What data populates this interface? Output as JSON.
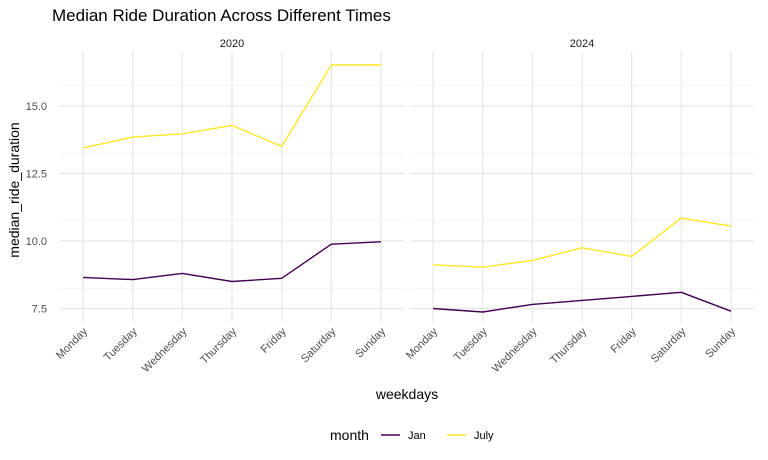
{
  "chart_data": {
    "type": "line",
    "title": "Median Ride Duration Across Different Times",
    "xlabel": "weekdays",
    "ylabel": "median_ride_duration",
    "categories": [
      "Monday",
      "Tuesday",
      "Wednesday",
      "Thursday",
      "Friday",
      "Saturday",
      "Sunday"
    ],
    "ylim": [
      7.0,
      17.0
    ],
    "yticks": [
      "7.5",
      "10.0",
      "12.5",
      "15.0"
    ],
    "grid": true,
    "legend": {
      "title": "month",
      "position": "bottom",
      "entries": [
        "Jan",
        "July"
      ]
    },
    "colors": {
      "Jan": "#440154",
      "July": "#fde725"
    },
    "panels": [
      {
        "label": "2020",
        "series": [
          {
            "name": "Jan",
            "values": [
              8.65,
              8.57,
              8.8,
              8.5,
              8.62,
              9.88,
              9.97
            ]
          },
          {
            "name": "July",
            "values": [
              13.45,
              13.85,
              13.97,
              14.28,
              13.5,
              16.52,
              16.52
            ]
          }
        ]
      },
      {
        "label": "2024",
        "series": [
          {
            "name": "Jan",
            "values": [
              7.5,
              7.37,
              7.65,
              7.8,
              7.95,
              8.1,
              7.4
            ]
          },
          {
            "name": "July",
            "values": [
              9.12,
              9.03,
              9.28,
              9.75,
              9.43,
              10.85,
              10.55
            ]
          }
        ]
      }
    ]
  }
}
